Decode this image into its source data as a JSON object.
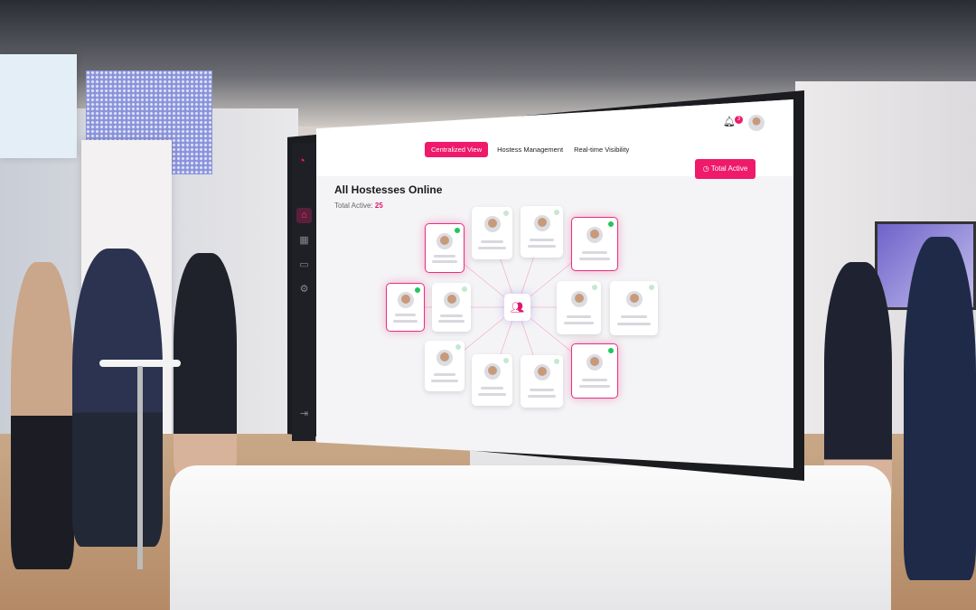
{
  "header": {
    "tabs": [
      {
        "label": "Centralized View",
        "active": true
      },
      {
        "label": "Hostess Management",
        "active": false
      },
      {
        "label": "Real-time Visibility",
        "active": false
      }
    ],
    "notification_count": "3",
    "total_active_button": "Total Active"
  },
  "main": {
    "title": "All Hostesses Online",
    "total_active_label": "Total Active:",
    "total_active_value": "25"
  },
  "sidebar": {
    "items": [
      "home-icon",
      "grid-icon",
      "calendar-icon",
      "settings-icon",
      "logout-icon"
    ]
  },
  "cards": [
    {
      "online": true,
      "highlighted": true
    },
    {
      "online": false,
      "highlighted": false
    },
    {
      "online": false,
      "highlighted": false
    },
    {
      "online": true,
      "highlighted": true
    },
    {
      "online": true,
      "highlighted": true
    },
    {
      "online": false,
      "highlighted": false
    },
    {
      "online": false,
      "highlighted": false
    },
    {
      "online": false,
      "highlighted": false
    },
    {
      "online": false,
      "highlighted": false
    },
    {
      "online": false,
      "highlighted": false
    },
    {
      "online": false,
      "highlighted": false
    },
    {
      "online": true,
      "highlighted": true
    }
  ],
  "colors": {
    "accent": "#ef1a6b",
    "online": "#22c55e",
    "sidebar": "#1f2026"
  }
}
